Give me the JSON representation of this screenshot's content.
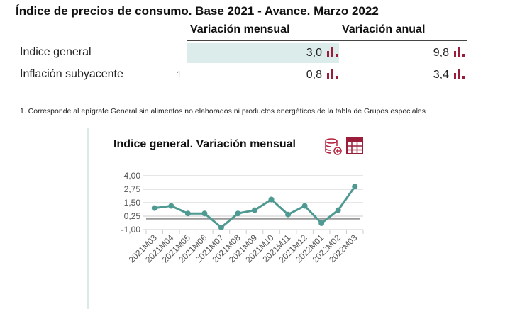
{
  "title": "Índice de precios de consumo. Base 2021 - Avance. Marzo 2022",
  "table": {
    "headers": [
      "Variación mensual",
      "Variación anual"
    ],
    "rows": [
      {
        "label": "Indice general",
        "note": "",
        "mensual": "3,0",
        "anual": "9,8"
      },
      {
        "label": "Inflación subyacente",
        "note": "1",
        "mensual": "0,8",
        "anual": "3,4"
      }
    ]
  },
  "footnote": "1. Corresponde al epígrafe General sin alimentos no elaborados ni productos energéticos de la tabla de Grupos especiales",
  "colors": {
    "accent": "#9a1e3a",
    "line": "#4e9a92",
    "highlight": "#dcecea"
  },
  "chart_data": {
    "type": "line",
    "title": "Indice general. Variación mensual",
    "categories": [
      "2021M03",
      "2021M04",
      "2021M05",
      "2021M06",
      "2021M07",
      "2021M08",
      "2021M09",
      "2021M10",
      "2021M11",
      "2021M12",
      "2022M01",
      "2022M02",
      "2022M03"
    ],
    "series": [
      {
        "name": "Indice general",
        "values": [
          1.0,
          1.2,
          0.5,
          0.5,
          -0.8,
          0.5,
          0.8,
          1.8,
          0.4,
          1.2,
          -0.4,
          0.8,
          3.0
        ]
      }
    ],
    "yticks": [
      "4,00",
      "2,75",
      "1,50",
      "0,25",
      "-1,00"
    ],
    "ylim": [
      -1,
      4
    ],
    "reference_line": 0,
    "grid": true
  }
}
